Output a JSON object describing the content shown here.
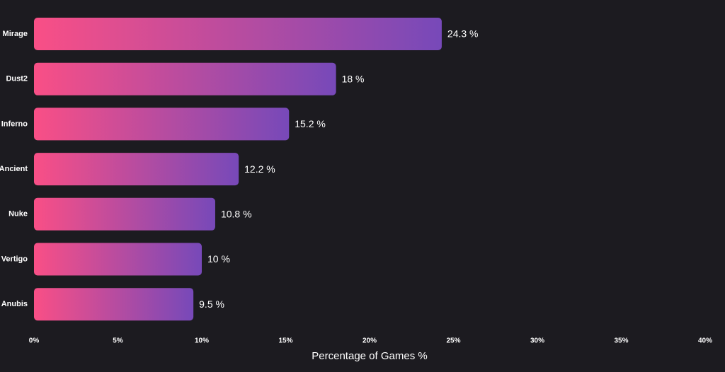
{
  "chart_data": {
    "type": "bar",
    "orientation": "horizontal",
    "categories": [
      "Mirage",
      "Dust2",
      "Inferno",
      "Ancient",
      "Nuke",
      "Vertigo",
      "Anubis"
    ],
    "values": [
      24.3,
      18,
      15.2,
      12.2,
      10.8,
      10,
      9.5
    ],
    "value_labels": [
      "24.3 %",
      "18 %",
      "15.2 %",
      "12.2 %",
      "10.8 %",
      "10 %",
      "9.5 %"
    ],
    "xlabel": "Percentage of Games %",
    "ylabel": "",
    "xlim": [
      0,
      40
    ],
    "xticks": [
      0,
      5,
      10,
      15,
      20,
      25,
      30,
      35,
      40
    ],
    "xtick_labels": [
      "0%",
      "5%",
      "10%",
      "15%",
      "20%",
      "25%",
      "30%",
      "35%",
      "40%"
    ],
    "grid": false,
    "legend": "none",
    "colors": {
      "background": "#1c1b20",
      "bar_start": "#f94f86",
      "bar_end": "#7749b9",
      "text": "#ffffff"
    }
  }
}
